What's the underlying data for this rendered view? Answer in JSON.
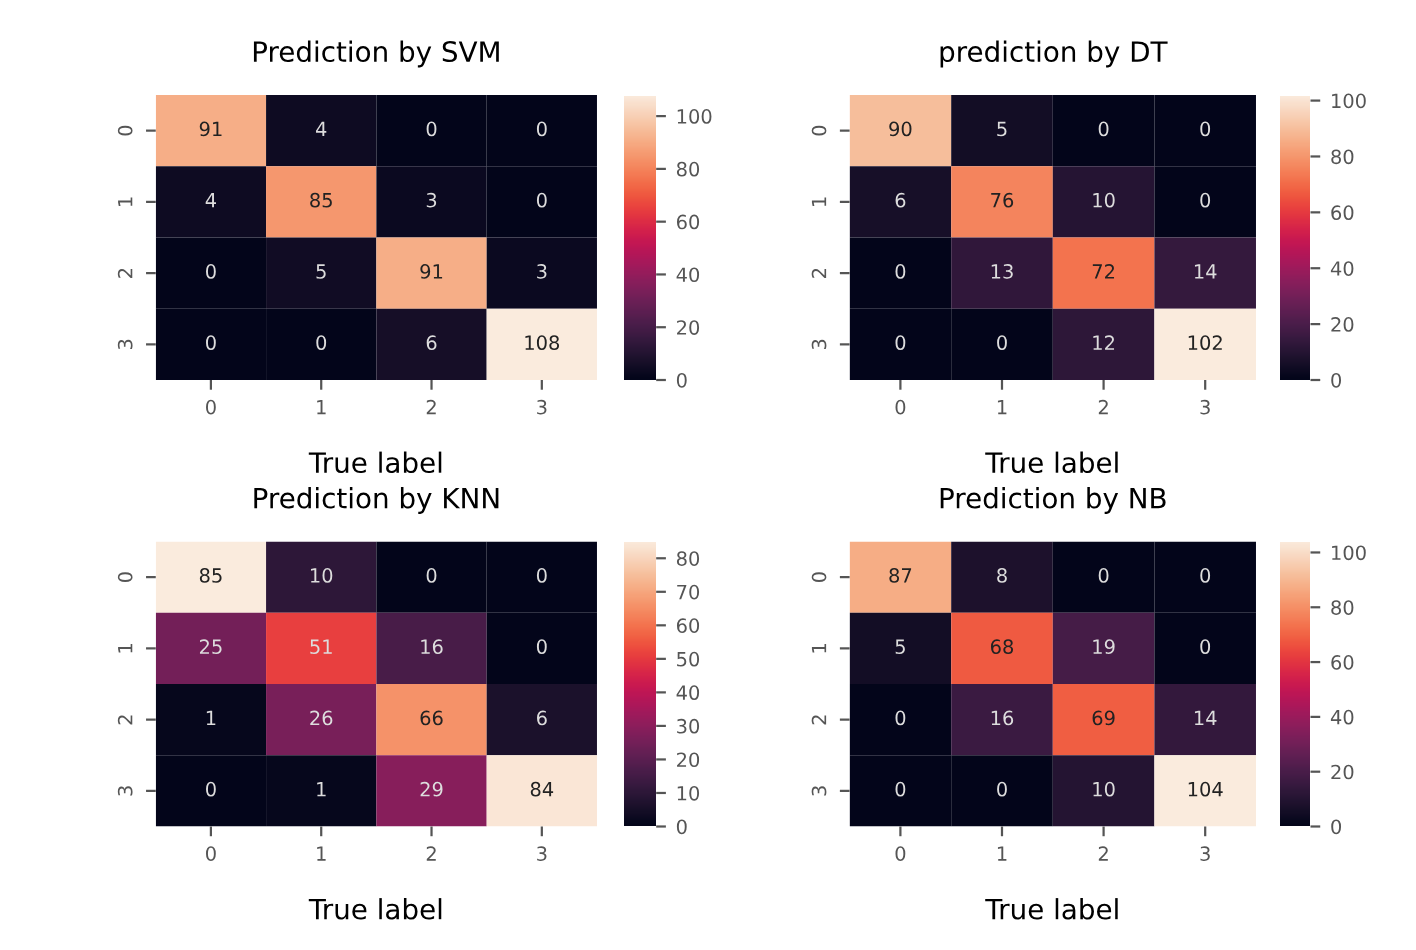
{
  "chart_data": [
    {
      "type": "heatmap",
      "title": "Prediction by SVM",
      "xlabel": "True label",
      "categories": [
        "0",
        "1",
        "2",
        "3"
      ],
      "y_categories": [
        "0",
        "1",
        "2",
        "3"
      ],
      "cells": [
        [
          91,
          4,
          0,
          0
        ],
        [
          4,
          85,
          3,
          0
        ],
        [
          0,
          5,
          91,
          3
        ],
        [
          0,
          0,
          6,
          108
        ]
      ],
      "clim": [
        0,
        108
      ],
      "cticks": [
        0,
        20,
        40,
        60,
        80,
        100
      ],
      "data_labels": true
    },
    {
      "type": "heatmap",
      "title": "prediction by DT",
      "xlabel": "True label",
      "categories": [
        "0",
        "1",
        "2",
        "3"
      ],
      "y_categories": [
        "0",
        "1",
        "2",
        "3"
      ],
      "cells": [
        [
          90,
          5,
          0,
          0
        ],
        [
          6,
          76,
          10,
          0
        ],
        [
          0,
          13,
          72,
          14
        ],
        [
          0,
          0,
          12,
          102
        ]
      ],
      "clim": [
        0,
        102
      ],
      "cticks": [
        0,
        20,
        40,
        60,
        80,
        100
      ],
      "data_labels": true
    },
    {
      "type": "heatmap",
      "title": "Prediction by KNN",
      "xlabel": "True label",
      "categories": [
        "0",
        "1",
        "2",
        "3"
      ],
      "y_categories": [
        "0",
        "1",
        "2",
        "3"
      ],
      "cells": [
        [
          85,
          10,
          0,
          0
        ],
        [
          25,
          51,
          16,
          0
        ],
        [
          1,
          26,
          66,
          6
        ],
        [
          0,
          1,
          29,
          84
        ]
      ],
      "clim": [
        0,
        85
      ],
      "cticks": [
        0,
        10,
        20,
        30,
        40,
        50,
        60,
        70,
        80
      ],
      "data_labels": true
    },
    {
      "type": "heatmap",
      "title": "Prediction by NB",
      "xlabel": "True label",
      "categories": [
        "0",
        "1",
        "2",
        "3"
      ],
      "y_categories": [
        "0",
        "1",
        "2",
        "3"
      ],
      "cells": [
        [
          87,
          8,
          0,
          0
        ],
        [
          5,
          68,
          19,
          0
        ],
        [
          0,
          16,
          69,
          14
        ],
        [
          0,
          0,
          10,
          104
        ]
      ],
      "clim": [
        0,
        104
      ],
      "cticks": [
        0,
        20,
        40,
        60,
        80,
        100
      ],
      "data_labels": true
    }
  ]
}
